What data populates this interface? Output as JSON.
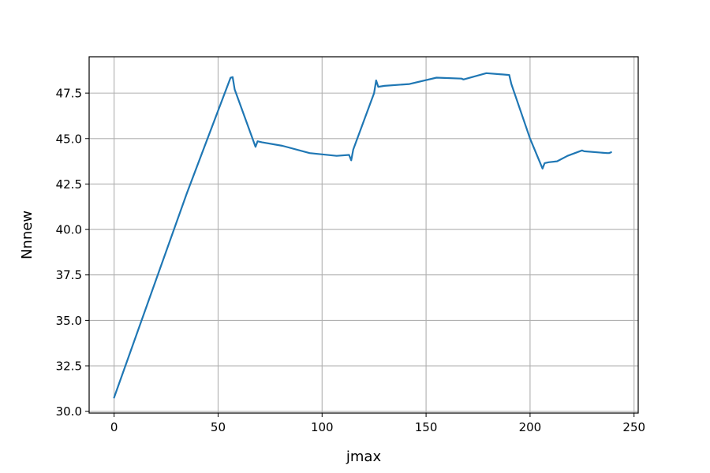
{
  "chart_data": {
    "type": "line",
    "title": "",
    "xlabel": "jmax",
    "ylabel": "Nnnew",
    "xlim": [
      -12,
      252
    ],
    "ylim": [
      29.9,
      49.5
    ],
    "xticks": [
      0,
      50,
      100,
      150,
      200,
      250
    ],
    "xtick_labels": [
      "0",
      "50",
      "100",
      "150",
      "200",
      "250"
    ],
    "yticks": [
      30.0,
      32.5,
      35.0,
      37.5,
      40.0,
      42.5,
      45.0,
      47.5
    ],
    "ytick_labels": [
      "30.0",
      "32.5",
      "35.0",
      "37.5",
      "40.0",
      "42.5",
      "45.0",
      "47.5"
    ],
    "grid": true,
    "colors": {
      "line": "#1f77b4"
    },
    "series": [
      {
        "x": [
          0,
          35,
          56,
          57,
          58,
          68,
          69,
          71,
          81,
          94,
          107,
          113,
          114,
          115,
          125,
          126,
          127,
          130,
          142,
          155,
          167,
          168,
          179,
          190,
          191,
          200,
          206,
          207,
          209,
          213,
          218,
          225,
          226,
          237,
          238,
          239
        ],
        "y": [
          30.75,
          42.0,
          48.35,
          48.38,
          47.7,
          44.55,
          44.85,
          44.8,
          44.6,
          44.2,
          44.05,
          44.1,
          43.8,
          44.4,
          47.5,
          48.2,
          47.85,
          47.9,
          48.0,
          48.35,
          48.3,
          48.25,
          48.6,
          48.5,
          48.0,
          45.0,
          43.35,
          43.65,
          43.7,
          43.75,
          44.05,
          44.35,
          44.3,
          44.2,
          44.2,
          44.25
        ]
      }
    ]
  }
}
